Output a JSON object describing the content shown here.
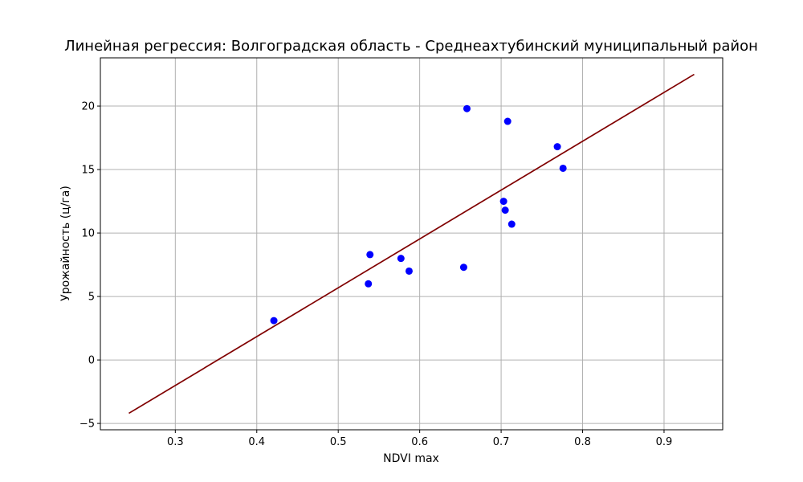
{
  "chart_data": {
    "type": "scatter",
    "title": "Линейная регрессия: Волгоградская область - Среднеахтубинский муниципальный район",
    "xlabel": "NDVI max",
    "ylabel": "Урожайность (ц/га)",
    "xlim": [
      0.208,
      0.972
    ],
    "ylim": [
      -5.5,
      23.8
    ],
    "xticks": [
      0.3,
      0.4,
      0.5,
      0.6,
      0.7,
      0.8,
      0.9
    ],
    "xtick_labels": [
      "0.3",
      "0.4",
      "0.5",
      "0.6",
      "0.7",
      "0.8",
      "0.9"
    ],
    "yticks": [
      -5,
      0,
      5,
      10,
      15,
      20
    ],
    "ytick_labels": [
      "−5",
      "0",
      "5",
      "10",
      "15",
      "20"
    ],
    "grid": true,
    "points": [
      {
        "x": 0.421,
        "y": 3.1
      },
      {
        "x": 0.537,
        "y": 6.0
      },
      {
        "x": 0.539,
        "y": 8.3
      },
      {
        "x": 0.577,
        "y": 8.0
      },
      {
        "x": 0.587,
        "y": 7.0
      },
      {
        "x": 0.654,
        "y": 7.3
      },
      {
        "x": 0.658,
        "y": 19.8
      },
      {
        "x": 0.703,
        "y": 12.5
      },
      {
        "x": 0.705,
        "y": 11.8
      },
      {
        "x": 0.708,
        "y": 18.8
      },
      {
        "x": 0.713,
        "y": 10.7
      },
      {
        "x": 0.769,
        "y": 16.8
      },
      {
        "x": 0.776,
        "y": 15.1
      }
    ],
    "regression_line": {
      "x": [
        0.243,
        0.937
      ],
      "y": [
        -4.2,
        22.5
      ]
    },
    "colors": {
      "points": "#0000ff",
      "line": "#800000",
      "grid": "#b0b0b0"
    }
  }
}
